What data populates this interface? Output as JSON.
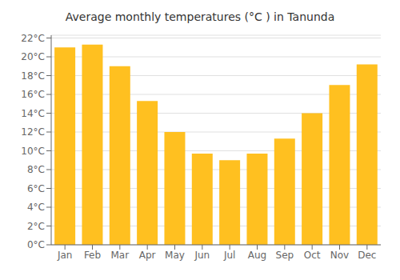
{
  "chart_data": {
    "type": "bar",
    "title": "Average monthly temperatures (°C ) in Tanunda",
    "categories": [
      "Jan",
      "Feb",
      "Mar",
      "Apr",
      "May",
      "Jun",
      "Jul",
      "Aug",
      "Sep",
      "Oct",
      "Nov",
      "Dec"
    ],
    "values": [
      21.0,
      21.3,
      19.0,
      15.3,
      12.0,
      9.7,
      9.0,
      9.7,
      11.3,
      14.0,
      17.0,
      19.2
    ],
    "color": "#FFC020",
    "ylim": [
      0,
      22.3
    ],
    "yticks": [
      {
        "value": 0,
        "label": "0°C"
      },
      {
        "value": 2,
        "label": "2°C"
      },
      {
        "value": 4,
        "label": "4°C"
      },
      {
        "value": 6,
        "label": "6°C"
      },
      {
        "value": 8,
        "label": "8°C"
      },
      {
        "value": 10,
        "label": "10°C"
      },
      {
        "value": 12,
        "label": "12°C"
      },
      {
        "value": 14,
        "label": "14°C"
      },
      {
        "value": 16,
        "label": "16°C"
      },
      {
        "value": 18,
        "label": "18°C"
      },
      {
        "value": 20,
        "label": "20°C"
      },
      {
        "value": 22,
        "label": "22°C"
      }
    ],
    "grid": true
  }
}
